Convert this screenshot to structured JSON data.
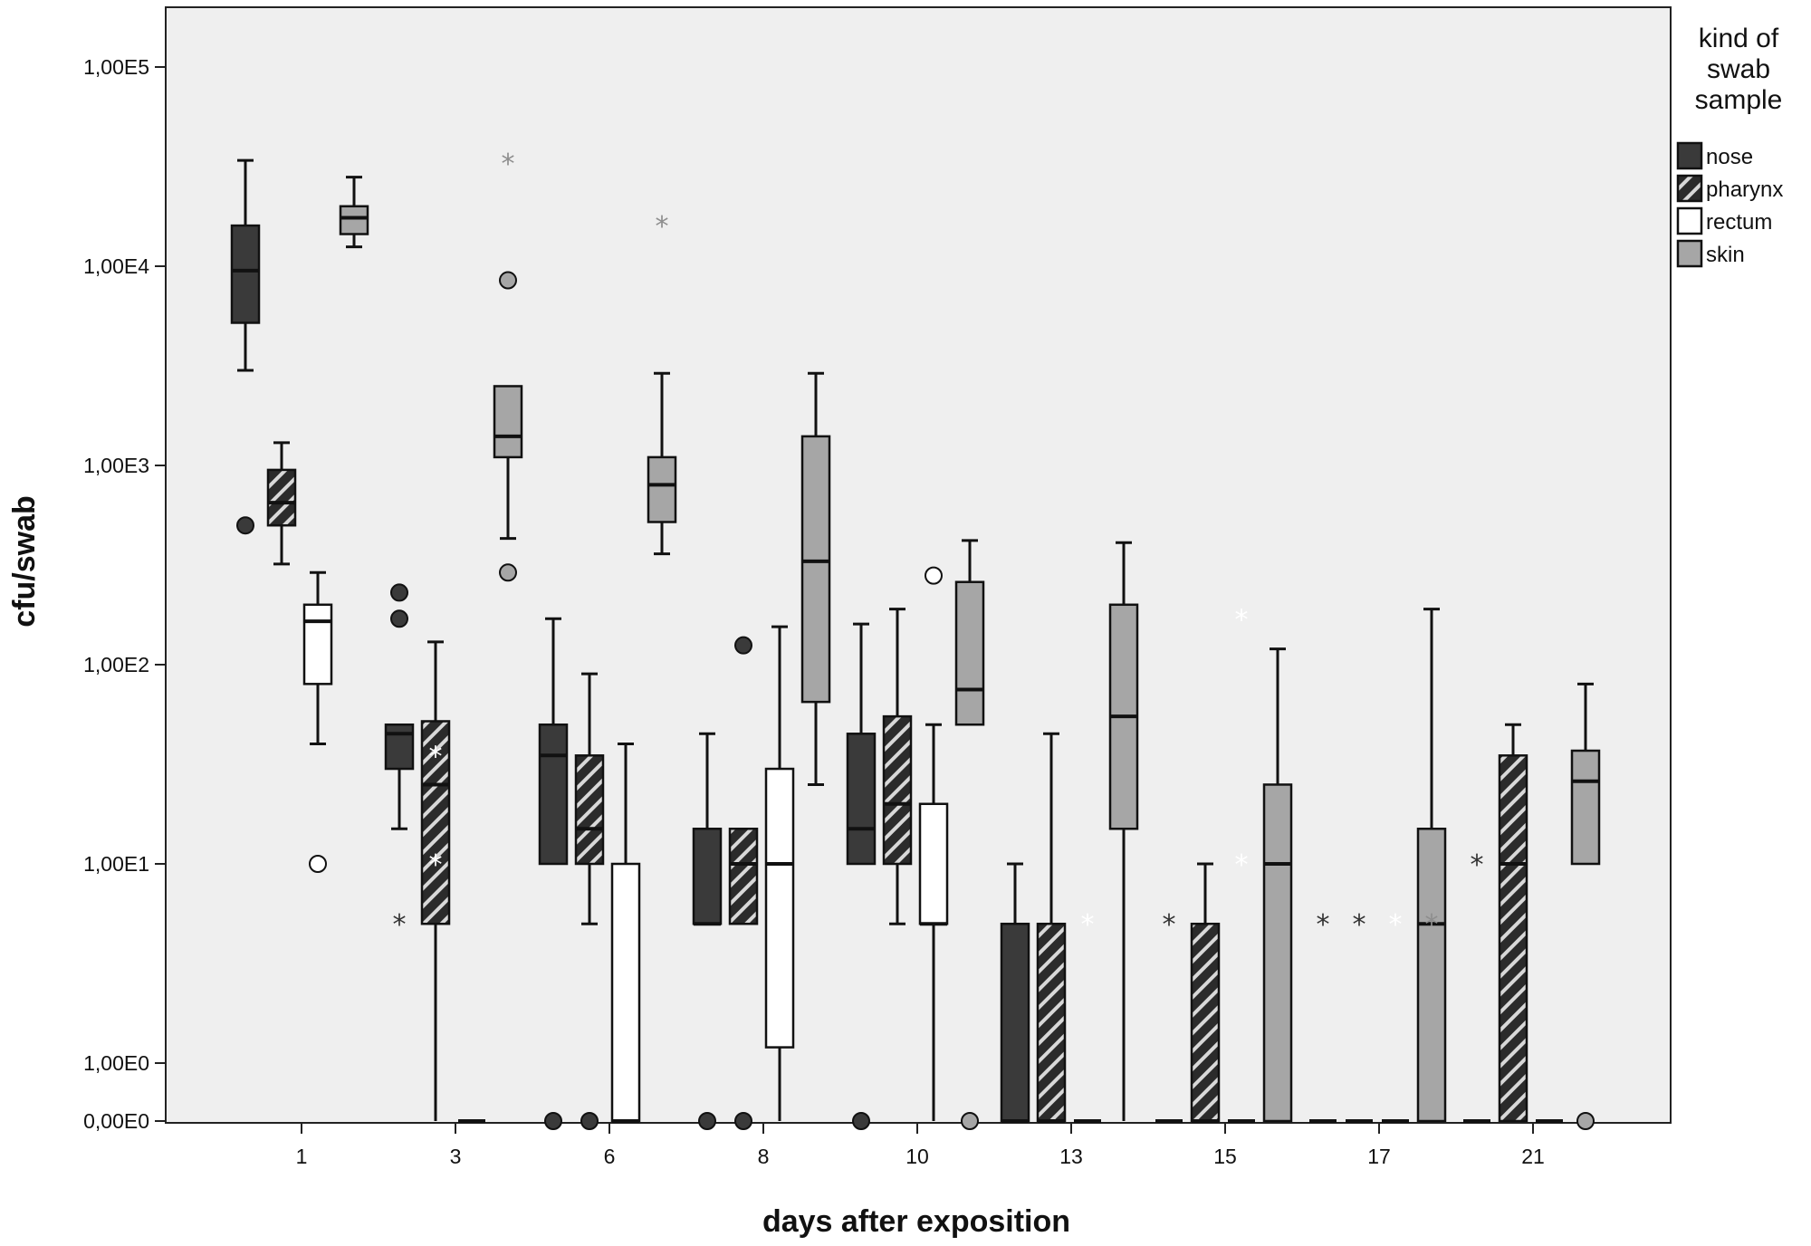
{
  "chart_data": {
    "type": "boxplot",
    "xlabel": "days after exposition",
    "ylabel": "cfu/swab",
    "y_scale": "log (0 shown as bottom baseline)",
    "y_ticks": [
      {
        "label": "0,00E0",
        "value": 0
      },
      {
        "label": "1,00E0",
        "value": 1
      },
      {
        "label": "1,00E1",
        "value": 10
      },
      {
        "label": "1,00E2",
        "value": 100
      },
      {
        "label": "1,00E3",
        "value": 1000
      },
      {
        "label": "1,00E4",
        "value": 10000
      },
      {
        "label": "1,00E5",
        "value": 100000
      }
    ],
    "categories": [
      "1",
      "3",
      "6",
      "8",
      "10",
      "13",
      "15",
      "17",
      "21"
    ],
    "legend": {
      "title_lines": [
        "kind of",
        "swab",
        "sample"
      ],
      "placement": "right",
      "entries": [
        {
          "key": "nose",
          "label": "nose",
          "fill": "#3a3a3a",
          "hatch": false
        },
        {
          "key": "pharynx",
          "label": "pharynx",
          "fill": "#2e2e2e",
          "hatch": true
        },
        {
          "key": "rectum",
          "label": "rectum",
          "fill": "#ffffff",
          "hatch": false
        },
        {
          "key": "skin",
          "label": "skin",
          "fill": "#a6a6a6",
          "hatch": false
        }
      ]
    },
    "series": [
      {
        "name": "nose",
        "boxes": [
          {
            "day": "1",
            "whisker_low": 3000,
            "q1": 5200,
            "median": 9500,
            "q3": 16000,
            "whisker_high": 34000,
            "outliers": [
              {
                "value": 500,
                "marker": "circle"
              }
            ]
          },
          {
            "day": "3",
            "whisker_low": 15,
            "q1": 30,
            "median": 45,
            "q3": 50,
            "whisker_high": 50,
            "outliers": [
              {
                "value": 230,
                "marker": "circle"
              },
              {
                "value": 170,
                "marker": "circle"
              },
              {
                "value": 5,
                "marker": "star"
              }
            ]
          },
          {
            "day": "6",
            "whisker_low": 10,
            "q1": 10,
            "median": 35,
            "q3": 50,
            "whisker_high": 170,
            "outliers": [
              {
                "value": 0,
                "marker": "circle"
              }
            ]
          },
          {
            "day": "8",
            "whisker_low": 5,
            "q1": 5,
            "median": 5,
            "q3": 15,
            "whisker_high": 45,
            "outliers": [
              {
                "value": 0,
                "marker": "circle"
              }
            ]
          },
          {
            "day": "10",
            "whisker_low": 10,
            "q1": 10,
            "median": 15,
            "q3": 45,
            "whisker_high": 160,
            "outliers": [
              {
                "value": 0,
                "marker": "circle"
              }
            ]
          },
          {
            "day": "13",
            "whisker_low": 0,
            "q1": 0,
            "median": 0,
            "q3": 5,
            "whisker_high": 10,
            "outliers": []
          },
          {
            "day": "15",
            "whisker_low": 0,
            "q1": 0,
            "median": 0,
            "q3": 0,
            "whisker_high": 0,
            "outliers": [
              {
                "value": 5,
                "marker": "star"
              }
            ]
          },
          {
            "day": "17",
            "whisker_low": 0,
            "q1": 0,
            "median": 0,
            "q3": 0,
            "whisker_high": 0,
            "outliers": [
              {
                "value": 5,
                "marker": "star"
              }
            ]
          },
          {
            "day": "21",
            "whisker_low": 0,
            "q1": 0,
            "median": 0,
            "q3": 0,
            "whisker_high": 0,
            "outliers": [
              {
                "value": 10,
                "marker": "star"
              }
            ]
          }
        ]
      },
      {
        "name": "pharynx",
        "boxes": [
          {
            "day": "1",
            "whisker_low": 320,
            "q1": 500,
            "median": 650,
            "q3": 950,
            "whisker_high": 1300,
            "outliers": []
          },
          {
            "day": "3",
            "whisker_low": 0,
            "q1": 5,
            "median": 25,
            "q3": 52,
            "whisker_high": 130,
            "outliers": [
              {
                "value": 35,
                "marker": "star-faint"
              },
              {
                "value": 10,
                "marker": "star-faint"
              }
            ]
          },
          {
            "day": "6",
            "whisker_low": 5,
            "q1": 10,
            "median": 15,
            "q3": 35,
            "whisker_high": 90,
            "outliers": [
              {
                "value": 0,
                "marker": "circle"
              }
            ]
          },
          {
            "day": "8",
            "whisker_low": 5,
            "q1": 5,
            "median": 10,
            "q3": 15,
            "whisker_high": 15,
            "outliers": [
              {
                "value": 125,
                "marker": "circle"
              },
              {
                "value": 0,
                "marker": "circle"
              }
            ]
          },
          {
            "day": "10",
            "whisker_low": 5,
            "q1": 10,
            "median": 20,
            "q3": 55,
            "whisker_high": 190,
            "outliers": []
          },
          {
            "day": "13",
            "whisker_low": 0,
            "q1": 0,
            "median": 0,
            "q3": 5,
            "whisker_high": 45,
            "outliers": []
          },
          {
            "day": "15",
            "whisker_low": 0,
            "q1": 0,
            "median": 0,
            "q3": 5,
            "whisker_high": 10,
            "outliers": []
          },
          {
            "day": "17",
            "whisker_low": 0,
            "q1": 0,
            "median": 0,
            "q3": 0,
            "whisker_high": 0,
            "outliers": [
              {
                "value": 5,
                "marker": "star"
              }
            ]
          },
          {
            "day": "21",
            "whisker_low": 0,
            "q1": 0,
            "median": 10,
            "q3": 35,
            "whisker_high": 50,
            "outliers": []
          }
        ]
      },
      {
        "name": "rectum",
        "boxes": [
          {
            "day": "1",
            "whisker_low": 40,
            "q1": 80,
            "median": 165,
            "q3": 200,
            "whisker_high": 290,
            "outliers": [
              {
                "value": 10,
                "marker": "circle"
              }
            ]
          },
          {
            "day": "3",
            "whisker_low": 0,
            "q1": 0,
            "median": 0,
            "q3": 0,
            "whisker_high": 0,
            "outliers": []
          },
          {
            "day": "6",
            "whisker_low": 0,
            "q1": 0,
            "median": 0,
            "q3": 10,
            "whisker_high": 40,
            "outliers": []
          },
          {
            "day": "8",
            "whisker_low": 0,
            "q1": 1.2,
            "median": 10,
            "q3": 30,
            "whisker_high": 155,
            "outliers": []
          },
          {
            "day": "10",
            "whisker_low": 0,
            "q1": 5,
            "median": 5,
            "q3": 20,
            "whisker_high": 50,
            "outliers": [
              {
                "value": 280,
                "marker": "circle"
              }
            ]
          },
          {
            "day": "13",
            "whisker_low": 0,
            "q1": 0,
            "median": 0,
            "q3": 0,
            "whisker_high": 0,
            "outliers": [
              {
                "value": 5,
                "marker": "star-faint"
              }
            ]
          },
          {
            "day": "15",
            "whisker_low": 0,
            "q1": 0,
            "median": 0,
            "q3": 0,
            "whisker_high": 0,
            "outliers": [
              {
                "value": 10,
                "marker": "star-faint"
              },
              {
                "value": 170,
                "marker": "star-faint"
              }
            ]
          },
          {
            "day": "17",
            "whisker_low": 0,
            "q1": 0,
            "median": 0,
            "q3": 0,
            "whisker_high": 0,
            "outliers": [
              {
                "value": 5,
                "marker": "star-faint"
              }
            ]
          },
          {
            "day": "21",
            "whisker_low": 0,
            "q1": 0,
            "median": 0,
            "q3": 0,
            "whisker_high": 0,
            "outliers": []
          }
        ]
      },
      {
        "name": "skin",
        "boxes": [
          {
            "day": "1",
            "whisker_low": 12500,
            "q1": 14500,
            "median": 17500,
            "q3": 20000,
            "whisker_high": 28000,
            "outliers": []
          },
          {
            "day": "3",
            "whisker_low": 430,
            "q1": 1100,
            "median": 1400,
            "q3": 2500,
            "whisker_high": 2500,
            "outliers": [
              {
                "value": 33000,
                "marker": "star-grey"
              },
              {
                "value": 8500,
                "marker": "circle"
              },
              {
                "value": 290,
                "marker": "circle"
              }
            ]
          },
          {
            "day": "6",
            "whisker_low": 360,
            "q1": 520,
            "median": 800,
            "q3": 1100,
            "whisker_high": 2900,
            "outliers": [
              {
                "value": 16000,
                "marker": "star-grey"
              }
            ]
          },
          {
            "day": "8",
            "whisker_low": 25,
            "q1": 65,
            "median": 330,
            "q3": 1400,
            "whisker_high": 2900,
            "outliers": []
          },
          {
            "day": "10",
            "whisker_low": 50,
            "q1": 50,
            "median": 75,
            "q3": 260,
            "whisker_high": 420,
            "outliers": [
              {
                "value": 0,
                "marker": "circle"
              }
            ]
          },
          {
            "day": "13",
            "whisker_low": 0,
            "q1": 15,
            "median": 55,
            "q3": 200,
            "whisker_high": 410,
            "outliers": []
          },
          {
            "day": "15",
            "whisker_low": 0,
            "q1": 0,
            "median": 10,
            "q3": 25,
            "whisker_high": 120,
            "outliers": []
          },
          {
            "day": "17",
            "whisker_low": 0,
            "q1": 0,
            "median": 5,
            "q3": 15,
            "whisker_high": 190,
            "outliers": [
              {
                "value": 5,
                "marker": "star-grey"
              }
            ]
          },
          {
            "day": "21",
            "whisker_low": 10,
            "q1": 10,
            "median": 26,
            "q3": 37,
            "whisker_high": 80,
            "outliers": [
              {
                "value": 0,
                "marker": "circle"
              }
            ]
          }
        ]
      }
    ]
  }
}
